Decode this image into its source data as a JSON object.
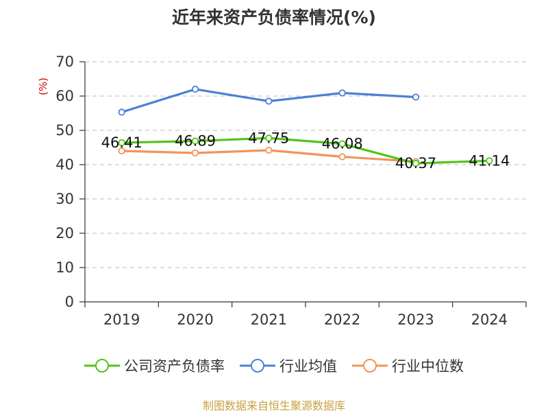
{
  "chart_data": {
    "type": "line",
    "title": "近年来资产负债率情况(%)",
    "xlabel": "",
    "ylabel": "(%)",
    "categories": [
      "2019",
      "2020",
      "2021",
      "2022",
      "2023",
      "2024"
    ],
    "ylim": [
      0,
      70
    ],
    "yticks": [
      0,
      10,
      20,
      30,
      40,
      50,
      60,
      70
    ],
    "grid": true,
    "legend_position": "bottom",
    "series": [
      {
        "name": "公司资产负债率",
        "color": "#52c41a",
        "values": [
          46.41,
          46.89,
          47.75,
          46.08,
          40.37,
          41.14
        ],
        "labels": [
          "46.41",
          "46.89",
          "47.75",
          "46.08",
          "40.37",
          "41.14"
        ]
      },
      {
        "name": "行业均值",
        "color": "#4e7fd6",
        "values": [
          55.3,
          62.0,
          58.5,
          60.9,
          59.7,
          null
        ]
      },
      {
        "name": "行业中位数",
        "color": "#f4935a",
        "values": [
          44.0,
          43.4,
          44.2,
          42.3,
          40.9,
          null
        ]
      }
    ]
  },
  "source": "制图数据来自恒生聚源数据库"
}
